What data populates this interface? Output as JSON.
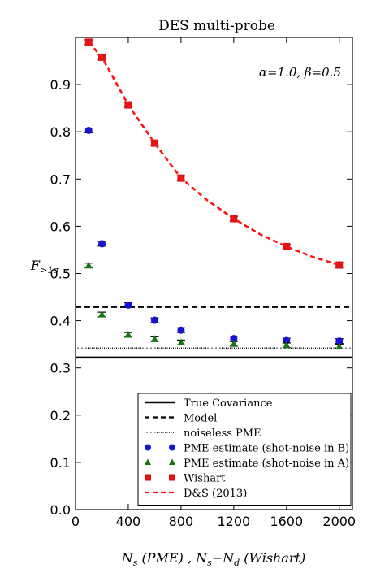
{
  "chart_data": {
    "type": "scatter",
    "title": "DES multi-probe",
    "annotation": "α=1.0, β=0.5",
    "xlabel": "N_s (PME) , N_s−N_d (Wishart)",
    "ylabel": "F_>1σ",
    "xlim": [
      0,
      2100
    ],
    "ylim": [
      0,
      1.0
    ],
    "xticks": [
      0,
      400,
      800,
      1200,
      1600,
      2000
    ],
    "yticks": [
      0.0,
      0.1,
      0.2,
      0.3,
      0.4,
      0.5,
      0.6,
      0.7,
      0.8,
      0.9
    ],
    "xtick_labels": [
      "0",
      "400",
      "800",
      "1200",
      "1600",
      "2000"
    ],
    "ytick_labels": [
      "0.0",
      "0.1",
      "0.2",
      "0.3",
      "0.4",
      "0.5",
      "0.6",
      "0.7",
      "0.8",
      "0.9"
    ],
    "legend_position": "bottom-right",
    "hlines": [
      {
        "name": "True Covariance",
        "y": 0.322,
        "style": "solid",
        "color": "#000000"
      },
      {
        "name": "Model",
        "y": 0.429,
        "style": "dashed",
        "color": "#000000"
      },
      {
        "name": "noiseless PME",
        "y": 0.342,
        "style": "dotted",
        "color": "#000000"
      }
    ],
    "series": [
      {
        "name": "PME estimate (shot-noise in B)",
        "marker": "circle",
        "color": "#1414d2",
        "x": [
          100,
          200,
          400,
          600,
          800,
          1200,
          1600,
          2000
        ],
        "y": [
          0.803,
          0.563,
          0.433,
          0.401,
          0.38,
          0.362,
          0.358,
          0.357
        ],
        "err": [
          0.005,
          0.005,
          0.005,
          0.005,
          0.005,
          0.005,
          0.005,
          0.005
        ]
      },
      {
        "name": "PME estimate (shot-noise in A)",
        "marker": "triangle",
        "color": "#127812",
        "x": [
          100,
          200,
          400,
          600,
          800,
          1200,
          1600,
          2000
        ],
        "y": [
          0.517,
          0.413,
          0.37,
          0.361,
          0.354,
          0.351,
          0.348,
          0.345
        ],
        "err": [
          0.005,
          0.005,
          0.005,
          0.005,
          0.005,
          0.005,
          0.005,
          0.005
        ]
      },
      {
        "name": "Wishart",
        "marker": "square",
        "color": "#dc1414",
        "x": [
          100,
          200,
          400,
          600,
          800,
          1200,
          1600,
          2000
        ],
        "y": [
          0.99,
          0.958,
          0.857,
          0.776,
          0.702,
          0.616,
          0.557,
          0.518
        ],
        "err": [
          0.005,
          0.005,
          0.005,
          0.005,
          0.005,
          0.005,
          0.005,
          0.005
        ]
      },
      {
        "name": "D&S (2013)",
        "marker": "dashed-line",
        "color": "#ff1414",
        "x": [
          100,
          200,
          400,
          600,
          800,
          1000,
          1200,
          1400,
          1600,
          1800,
          2000
        ],
        "y": [
          0.99,
          0.958,
          0.857,
          0.776,
          0.702,
          0.655,
          0.616,
          0.583,
          0.557,
          0.535,
          0.518
        ]
      }
    ]
  }
}
